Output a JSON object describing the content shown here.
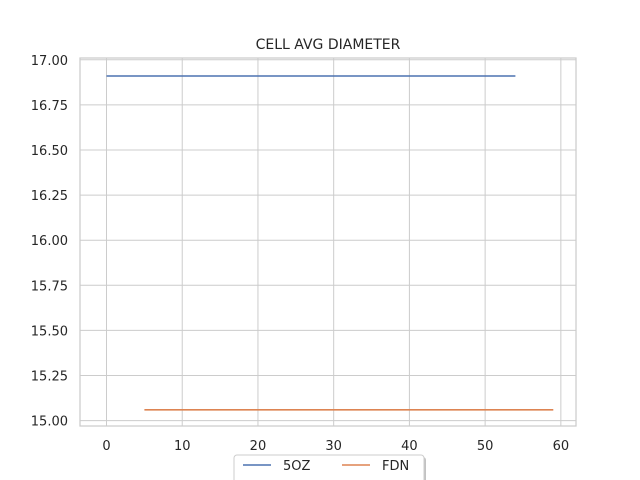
{
  "chart_data": {
    "type": "line",
    "title": "CELL AVG  DIAMETER",
    "xlabel": "",
    "ylabel": "",
    "xlim": [
      -3.5,
      62
    ],
    "ylim": [
      14.97,
      17.01
    ],
    "xticks": [
      0,
      10,
      20,
      30,
      40,
      50,
      60
    ],
    "xtick_labels": [
      "0",
      "10",
      "20",
      "30",
      "40",
      "50",
      "60"
    ],
    "yticks": [
      15.0,
      15.25,
      15.5,
      15.75,
      16.0,
      16.25,
      16.5,
      16.75,
      17.0
    ],
    "ytick_labels": [
      "15.00",
      "15.25",
      "15.50",
      "15.75",
      "16.00",
      "16.25",
      "16.50",
      "16.75",
      "17.00"
    ],
    "grid": true,
    "legend_position": "bottom-center",
    "series": [
      {
        "name": "5OZ",
        "color": "#4c72b0",
        "x": [
          0,
          54
        ],
        "y": [
          16.91,
          16.91
        ]
      },
      {
        "name": "FDN",
        "color": "#dd8452",
        "x": [
          5,
          59
        ],
        "y": [
          15.06,
          15.06
        ]
      }
    ]
  }
}
